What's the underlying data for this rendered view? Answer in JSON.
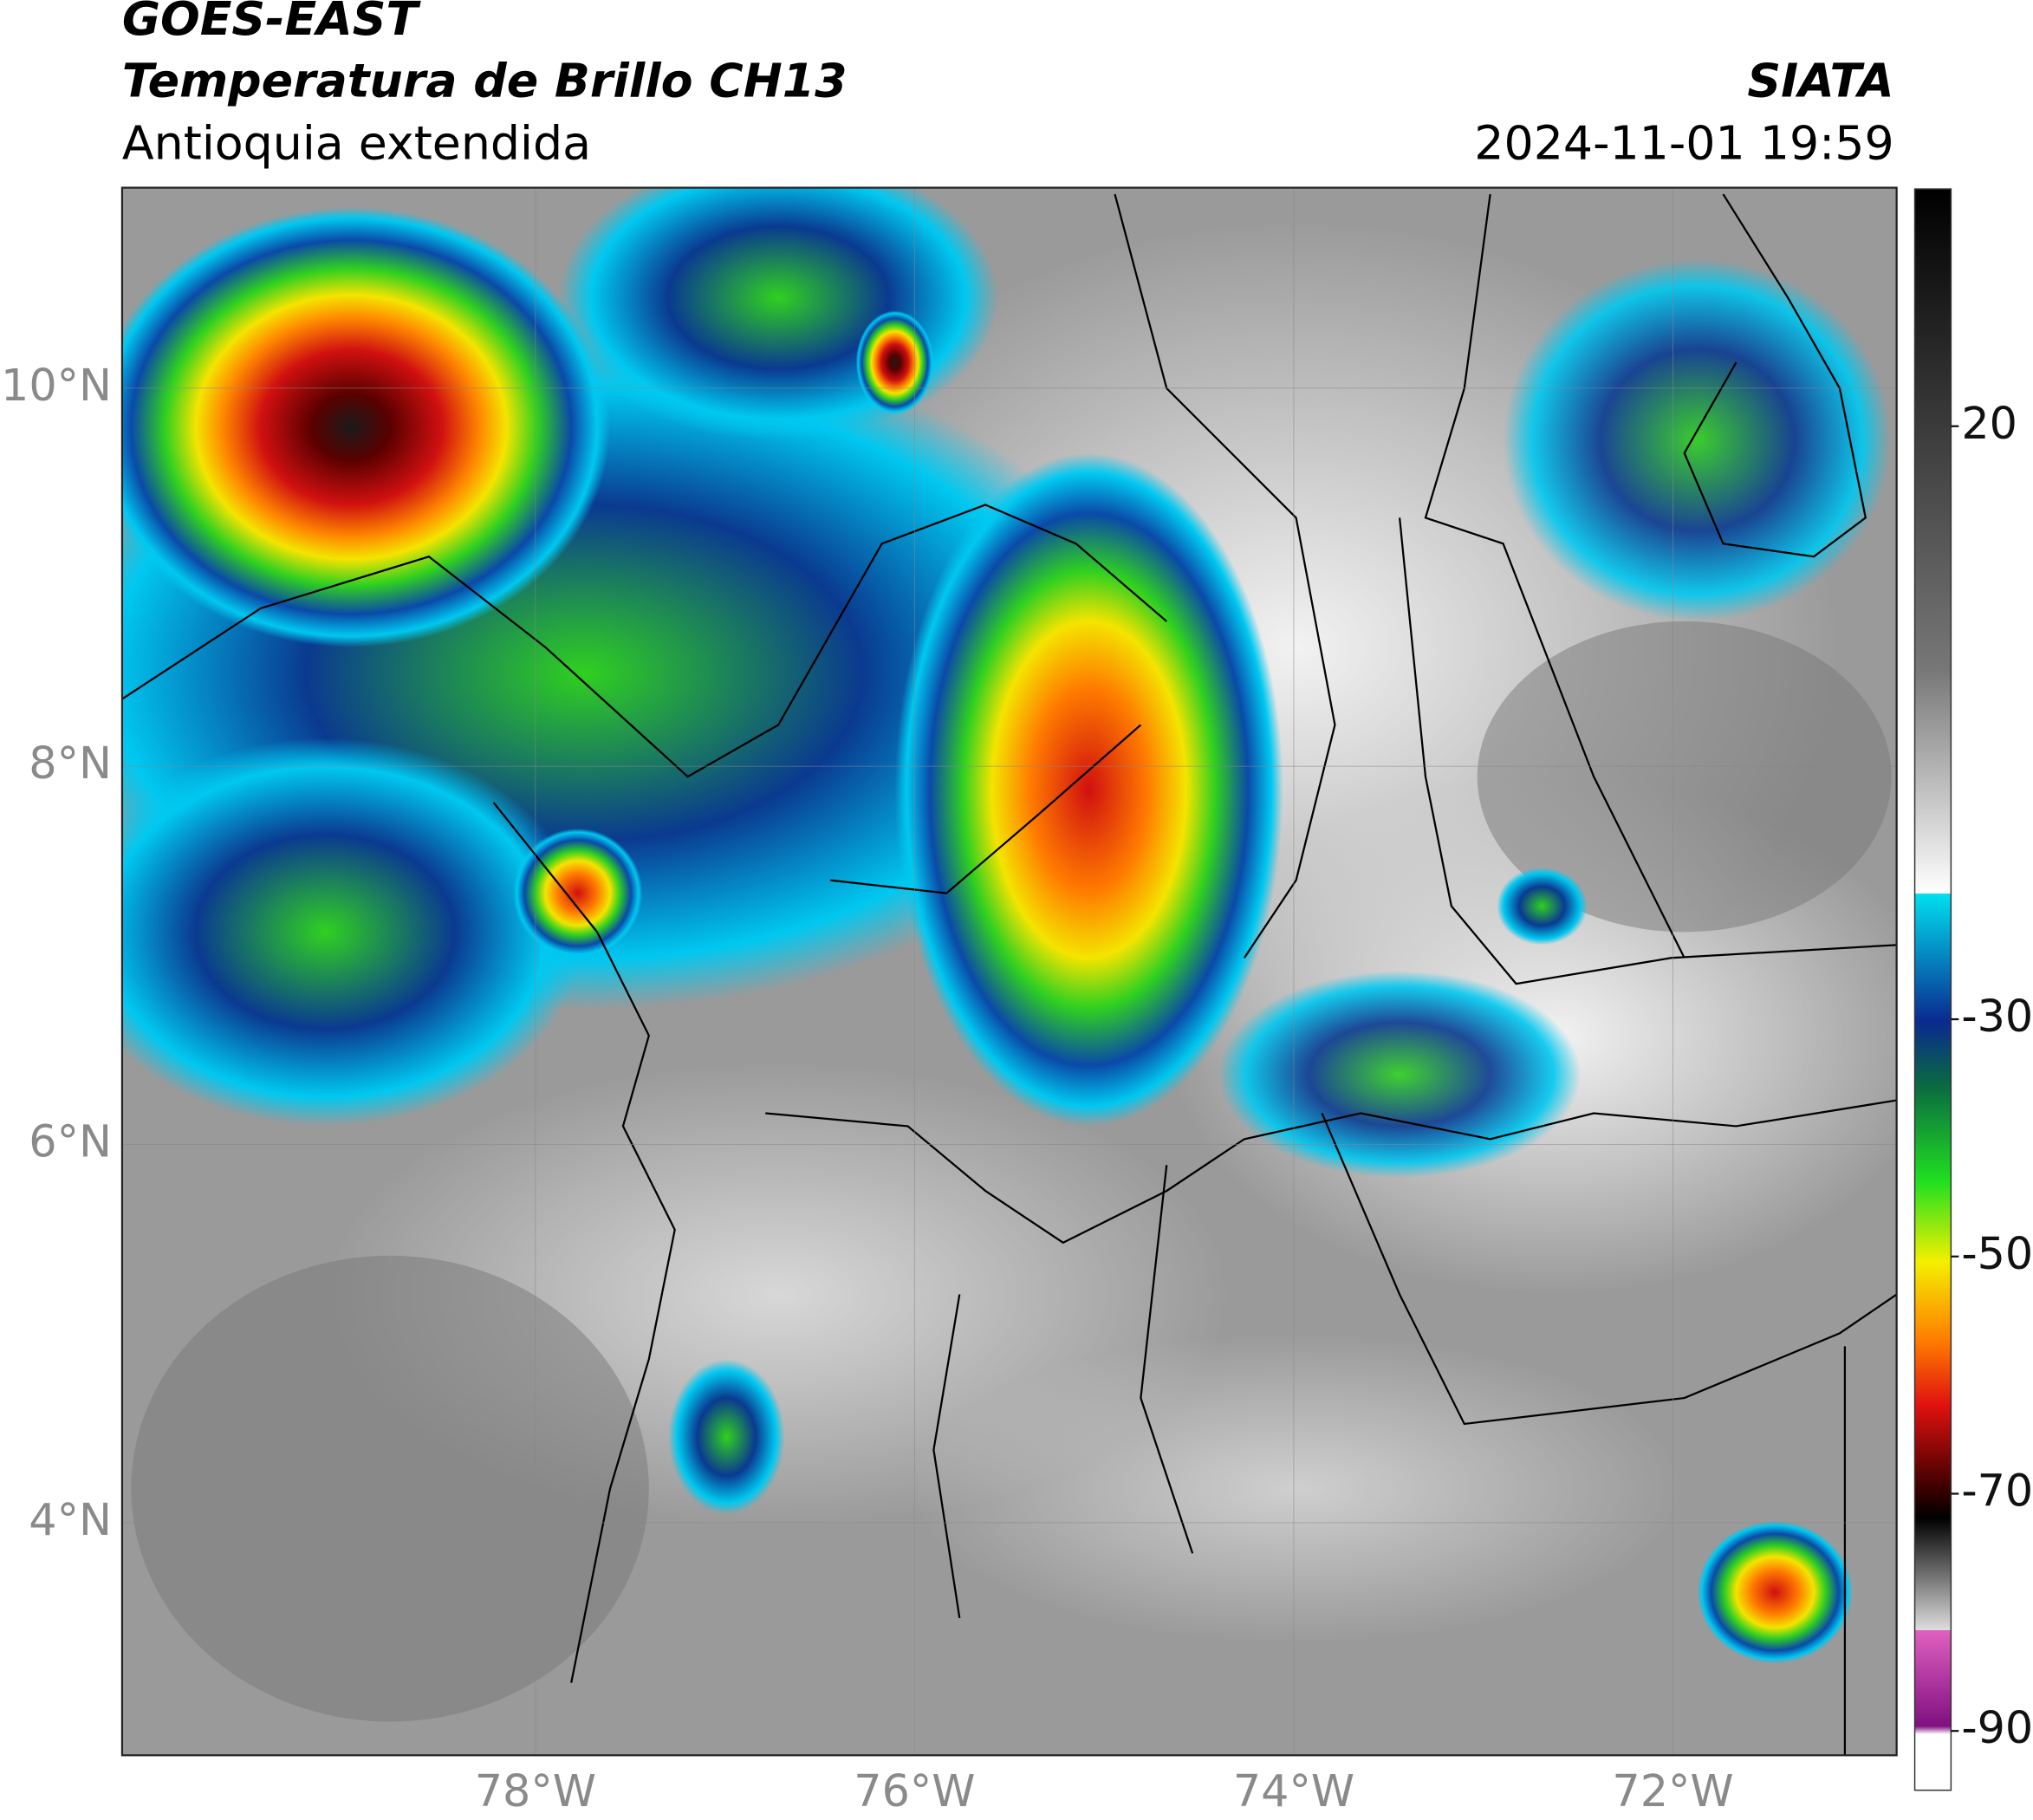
{
  "header": {
    "title_line1": "GOES-EAST",
    "title_line2": "Temperatura de Brillo CH13",
    "subtitle": "Antioquia extendida",
    "agency": "SIATA",
    "timestamp": "2024-11-01 19:59"
  },
  "map": {
    "xlim": [
      -80.18,
      -70.82
    ],
    "ylim": [
      2.77,
      11.06
    ],
    "xticks": [
      {
        "value": -78,
        "label": "78°W"
      },
      {
        "value": -76,
        "label": "76°W"
      },
      {
        "value": -74,
        "label": "74°W"
      },
      {
        "value": -72,
        "label": "72°W"
      }
    ],
    "yticks": [
      {
        "value": 10,
        "label": "10°N"
      },
      {
        "value": 8,
        "label": "8°N"
      },
      {
        "value": 6,
        "label": "6°N"
      },
      {
        "value": 4,
        "label": "4°N"
      }
    ]
  },
  "colorbar": {
    "lim": [
      -95,
      40
    ],
    "ticks": [
      20,
      -30,
      -50,
      -70,
      -90
    ]
  }
}
